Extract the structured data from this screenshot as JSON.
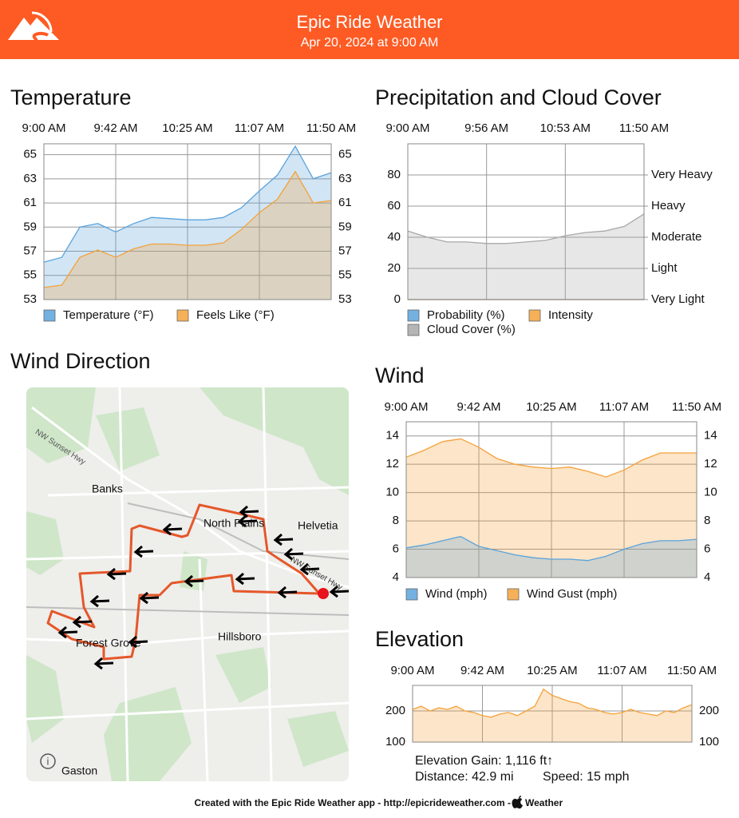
{
  "header": {
    "title": "Epic Ride Weather",
    "subtitle": "Apr 20, 2024 at 9:00 AM"
  },
  "chart_data": [
    {
      "type": "area",
      "title": "Temperature",
      "categories": [
        "9:00 AM",
        null,
        null,
        null,
        "9:42 AM",
        null,
        null,
        null,
        "10:25 AM",
        null,
        null,
        null,
        "11:07 AM",
        null,
        null,
        null,
        "11:50 AM"
      ],
      "series": [
        {
          "name": "Temperature (°F)",
          "color": "#5aa3dc",
          "values": [
            56.1,
            56.5,
            59.0,
            59.3,
            58.6,
            59.3,
            59.8,
            59.7,
            59.6,
            59.6,
            59.8,
            60.6,
            62.0,
            63.3,
            65.7,
            63.0,
            63.5
          ]
        },
        {
          "name": "Feels Like (°F)",
          "color": "#f4a23a",
          "values": [
            54.0,
            54.2,
            56.5,
            57.1,
            56.5,
            57.2,
            57.6,
            57.6,
            57.5,
            57.5,
            57.7,
            58.8,
            60.2,
            61.3,
            63.6,
            61.0,
            61.2
          ]
        }
      ],
      "ylim": [
        53,
        65.9
      ],
      "yticks": [
        53,
        55,
        57,
        59,
        61,
        63,
        65
      ],
      "mirror_yticks": true,
      "grid": true
    },
    {
      "type": "area",
      "title": "Precipitation and Cloud Cover",
      "categories": [
        "9:00 AM",
        null,
        null,
        null,
        "9:56 AM",
        null,
        null,
        null,
        "10:53 AM",
        null,
        null,
        null,
        "11:50 AM"
      ],
      "series": [
        {
          "name": "Probability (%)",
          "color": "#5aa3dc",
          "values": [
            0,
            0,
            0,
            0,
            0,
            0,
            0,
            0,
            0,
            0,
            0,
            0,
            0
          ]
        },
        {
          "name": "Intensity",
          "color": "#f4a23a",
          "values": [
            0,
            0,
            0,
            0,
            0,
            0,
            0,
            0,
            0,
            0,
            0,
            0,
            0
          ]
        },
        {
          "name": "Cloud Cover (%)",
          "color": "#a8a8a8",
          "values": [
            44,
            40,
            37,
            37,
            36,
            36,
            37,
            38,
            41,
            43,
            44,
            47,
            55
          ]
        }
      ],
      "ylim": [
        0,
        100
      ],
      "yticks": [
        0,
        20,
        40,
        60,
        80
      ],
      "y2lim": [
        0,
        100
      ],
      "y2ticks": [
        {
          "value": 0,
          "label": "Very Light"
        },
        {
          "value": 20,
          "label": "Light"
        },
        {
          "value": 40,
          "label": "Moderate"
        },
        {
          "value": 60,
          "label": "Heavy"
        },
        {
          "value": 80,
          "label": "Very Heavy"
        }
      ],
      "grid": true
    },
    {
      "type": "area",
      "title": "Wind",
      "categories": [
        "9:00 AM",
        null,
        null,
        null,
        "9:42 AM",
        null,
        null,
        null,
        "10:25 AM",
        null,
        null,
        null,
        "11:07 AM",
        null,
        null,
        null,
        "11:50 AM"
      ],
      "series": [
        {
          "name": "Wind (mph)",
          "color": "#5aa3dc",
          "values": [
            6.1,
            6.3,
            6.6,
            6.9,
            6.2,
            5.9,
            5.6,
            5.4,
            5.3,
            5.3,
            5.2,
            5.5,
            6.0,
            6.4,
            6.6,
            6.6,
            6.7
          ]
        },
        {
          "name": "Wind Gust (mph)",
          "color": "#f4a23a",
          "values": [
            12.5,
            13.0,
            13.6,
            13.8,
            13.2,
            12.4,
            12.0,
            11.8,
            11.7,
            11.8,
            11.5,
            11.1,
            11.6,
            12.3,
            12.8,
            12.8,
            12.8
          ]
        }
      ],
      "ylim": [
        4,
        15
      ],
      "yticks": [
        4,
        6,
        8,
        10,
        12,
        14
      ],
      "mirror_yticks": true,
      "grid": true
    },
    {
      "type": "area",
      "title": "Elevation",
      "categories": [
        "9:00 AM",
        null,
        null,
        null,
        null,
        null,
        null,
        null,
        "9:42 AM",
        null,
        null,
        null,
        null,
        null,
        null,
        null,
        "10:25 AM",
        null,
        null,
        null,
        null,
        null,
        null,
        null,
        "11:07 AM",
        null,
        null,
        null,
        null,
        null,
        null,
        null,
        "11:50 AM"
      ],
      "series": [
        {
          "color": "#f4a23a",
          "values": [
            205,
            215,
            200,
            210,
            205,
            215,
            200,
            195,
            185,
            180,
            190,
            195,
            185,
            200,
            215,
            270,
            250,
            240,
            230,
            225,
            210,
            205,
            195,
            190,
            195,
            205,
            195,
            190,
            185,
            200,
            195,
            210,
            220
          ]
        }
      ],
      "ylim": [
        100,
        282
      ],
      "yticks": [
        100,
        200
      ],
      "mirror_yticks": true,
      "grid": true
    }
  ],
  "map": {
    "title": "Wind Direction",
    "labels": [
      "NW Sunset Hwy",
      "Banks",
      "North Plains",
      "Helvetia",
      "NW Sunset Hwy",
      "Forest Grove",
      "Hillsboro",
      "Gaston"
    ]
  },
  "elevation_stats": {
    "gain": "Elevation Gain: 1,116 ft↑",
    "distance": "Distance: 42.9 mi",
    "speed": "Speed: 15 mph"
  },
  "footer": {
    "text": "Created with the Epic Ride Weather app - http://epicrideweather.com - ",
    "brand": "Weather"
  }
}
